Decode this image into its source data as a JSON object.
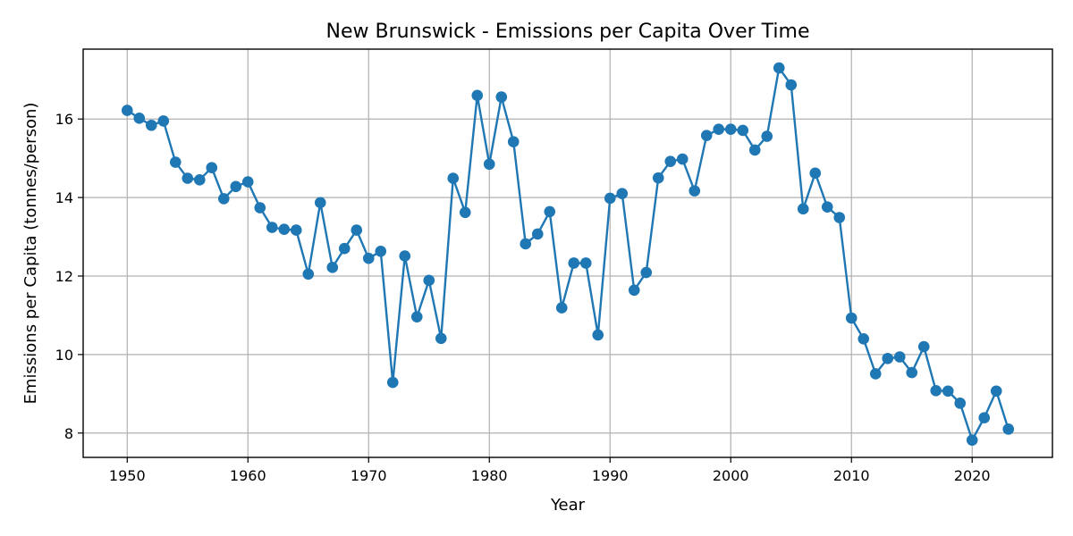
{
  "chart_data": {
    "type": "line",
    "title": "New Brunswick - Emissions per Capita Over Time",
    "xlabel": "Year",
    "ylabel": "Emissions per Capita (tonnes/person)",
    "xlim": [
      1946.35,
      2026.65
    ],
    "ylim": [
      7.38,
      17.78
    ],
    "xticks": [
      1950,
      1960,
      1970,
      1980,
      1990,
      2000,
      2010,
      2020
    ],
    "yticks": [
      8,
      10,
      12,
      14,
      16
    ],
    "grid": true,
    "legend": "none",
    "markers": true,
    "color": "#1f77b4",
    "x": [
      1950,
      1951,
      1952,
      1953,
      1954,
      1955,
      1956,
      1957,
      1958,
      1959,
      1960,
      1961,
      1962,
      1963,
      1964,
      1965,
      1966,
      1967,
      1968,
      1969,
      1970,
      1971,
      1972,
      1973,
      1974,
      1975,
      1976,
      1977,
      1978,
      1979,
      1980,
      1981,
      1982,
      1983,
      1984,
      1985,
      1986,
      1987,
      1988,
      1989,
      1990,
      1991,
      1992,
      1993,
      1994,
      1995,
      1996,
      1997,
      1998,
      1999,
      2000,
      2001,
      2002,
      2003,
      2004,
      2005,
      2006,
      2007,
      2008,
      2009,
      2010,
      2011,
      2012,
      2013,
      2014,
      2015,
      2016,
      2017,
      2018,
      2019,
      2020,
      2021,
      2022,
      2023
    ],
    "y": [
      16.22,
      16.02,
      15.84,
      15.95,
      14.9,
      14.49,
      14.45,
      14.76,
      13.97,
      14.28,
      14.4,
      13.74,
      13.24,
      13.19,
      13.17,
      12.05,
      13.87,
      12.22,
      12.7,
      13.17,
      12.45,
      12.63,
      9.29,
      12.51,
      10.96,
      11.89,
      10.41,
      14.49,
      13.62,
      16.6,
      14.85,
      16.56,
      15.42,
      12.82,
      13.07,
      13.64,
      11.19,
      12.33,
      12.33,
      10.5,
      13.98,
      14.1,
      11.64,
      12.09,
      14.5,
      14.92,
      14.98,
      14.17,
      15.58,
      15.74,
      15.74,
      15.71,
      15.21,
      15.56,
      17.3,
      16.87,
      13.71,
      14.62,
      13.76,
      13.49,
      10.93,
      10.4,
      9.51,
      9.9,
      9.94,
      9.54,
      10.2,
      9.08,
      9.07,
      8.76,
      7.82,
      8.39,
      9.07,
      8.1
    ]
  }
}
